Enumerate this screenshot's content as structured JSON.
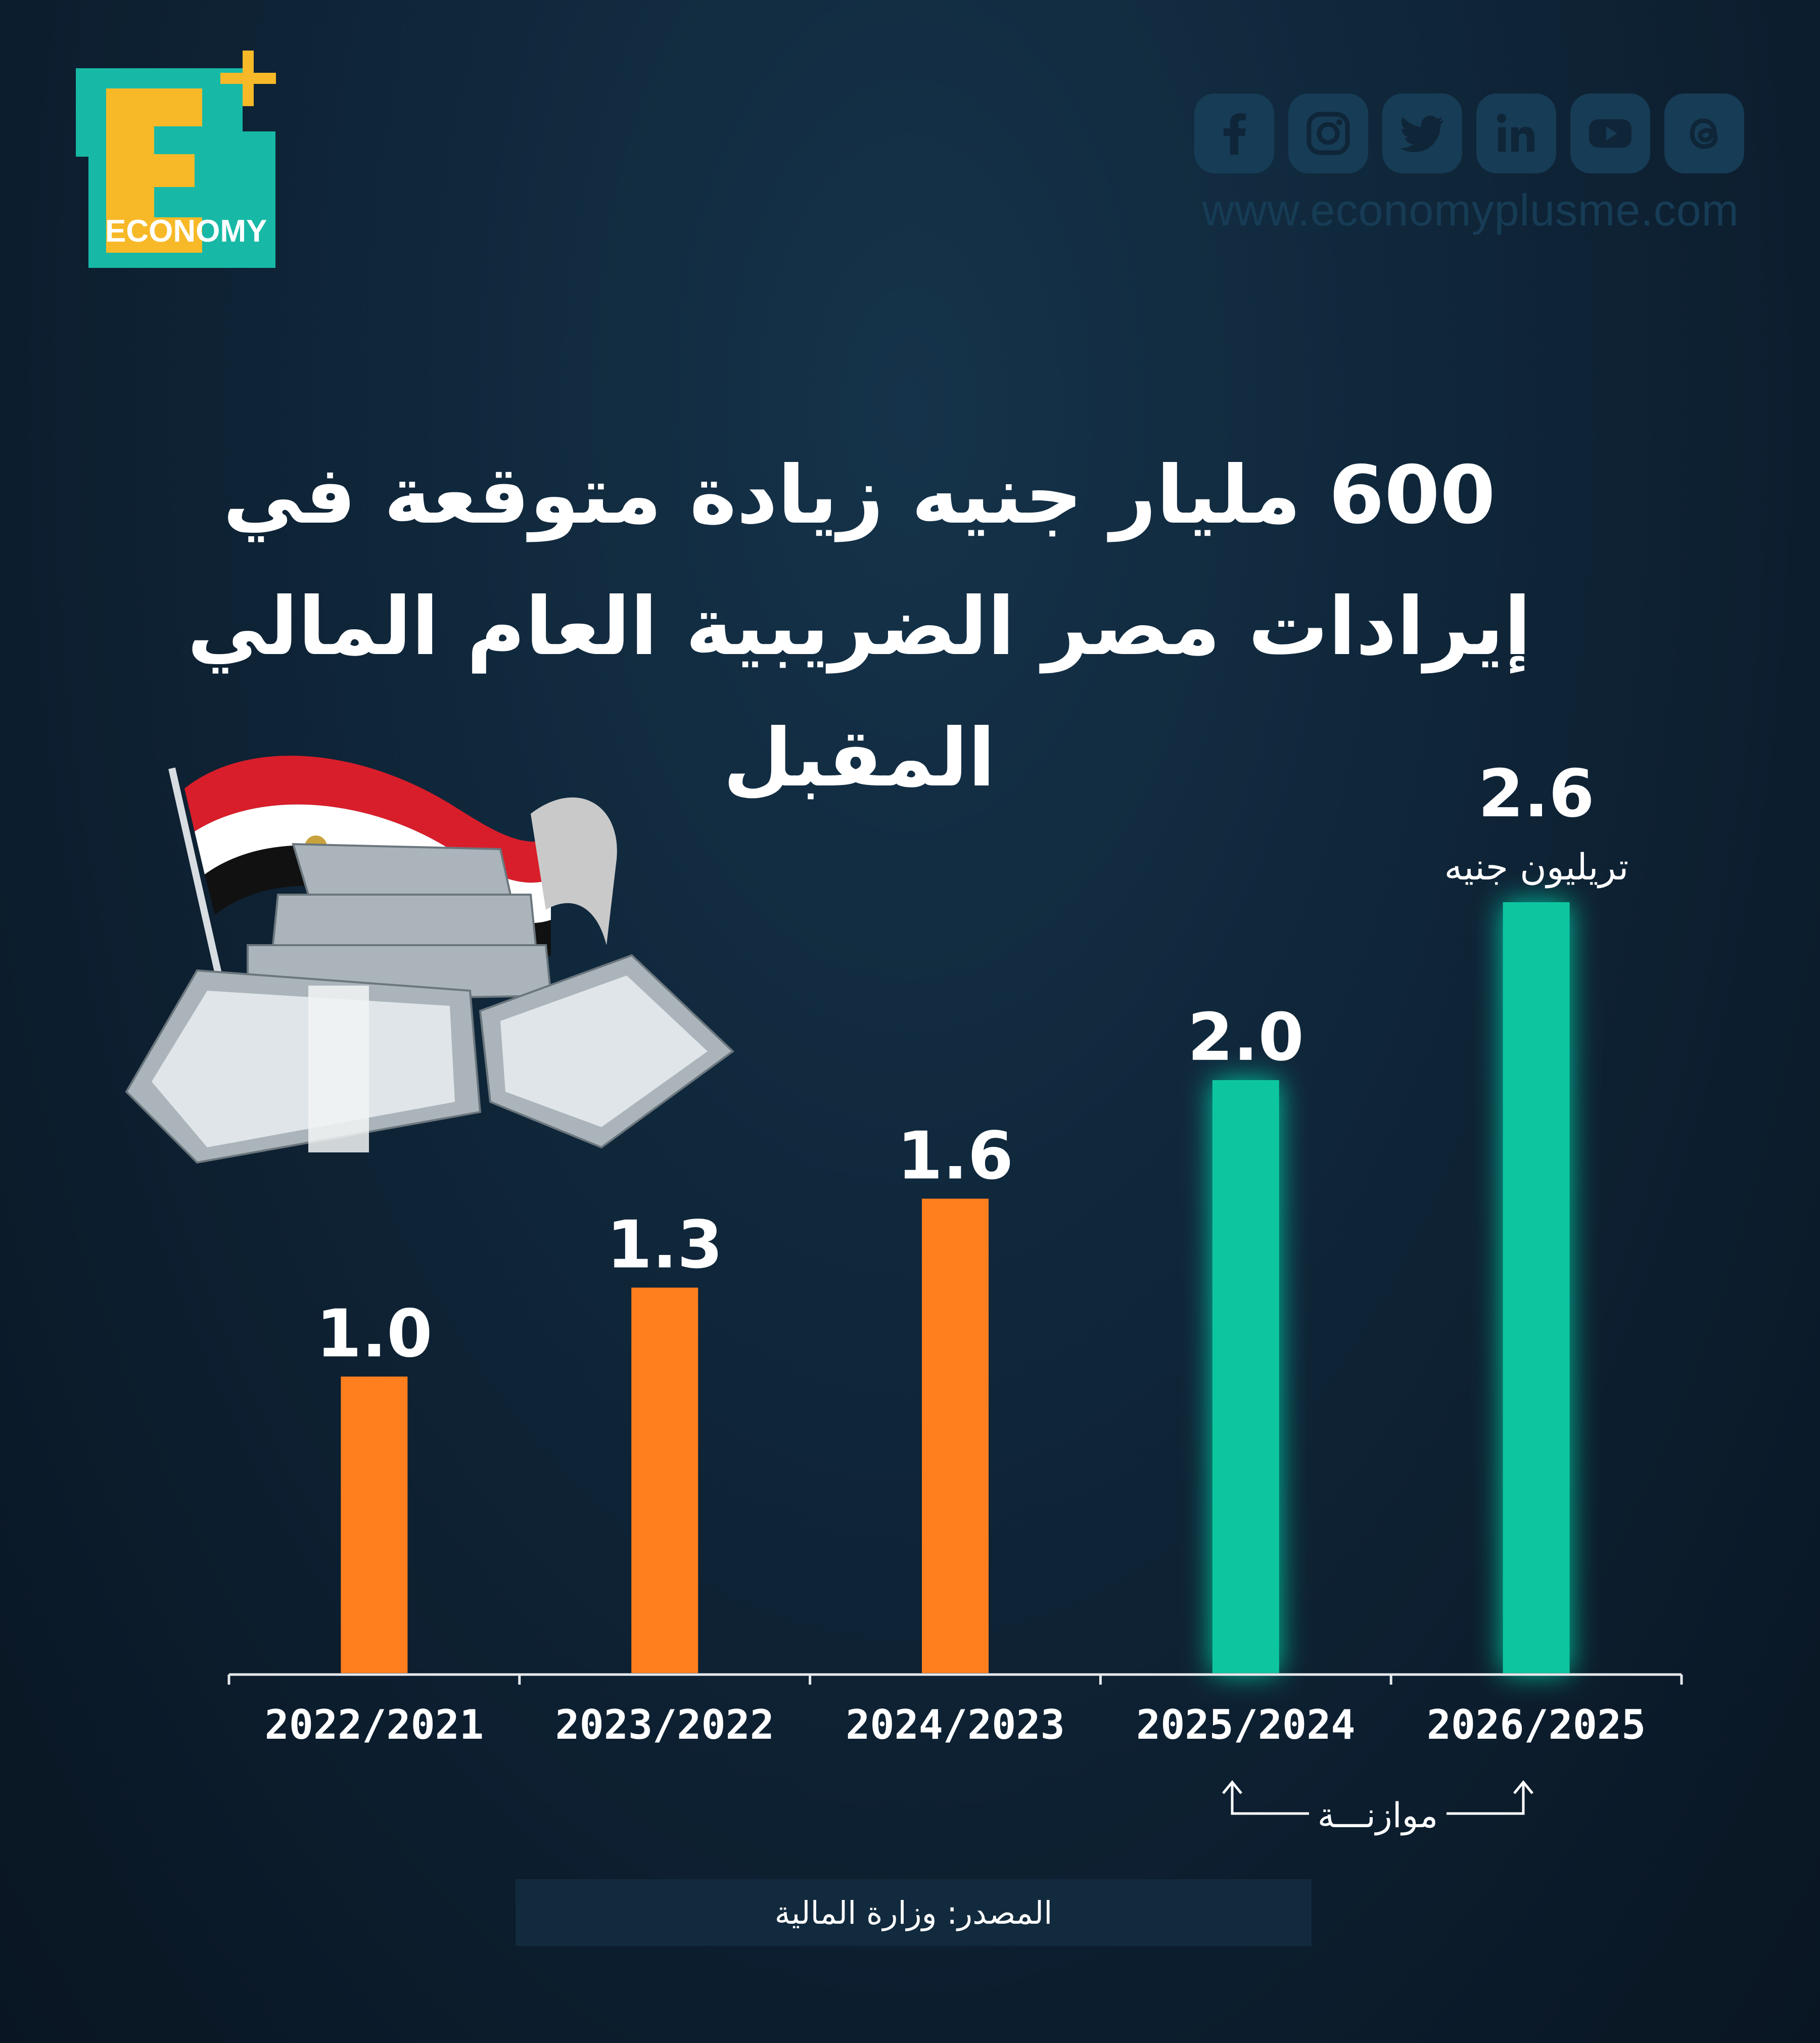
{
  "brand": {
    "logo_text": "ECONOMY",
    "site_url": "www.economyplusme.com",
    "social_icons": [
      "facebook-icon",
      "instagram-icon",
      "twitter-icon",
      "linkedin-icon",
      "youtube-icon",
      "threads-icon"
    ],
    "colors": {
      "teal": "#17b9a6",
      "yellow": "#f7b928",
      "orange": "#ff7f1f",
      "green": "#0fc6a0"
    }
  },
  "title": "600 مليار جنيه زيادة متوقعة في إيرادات مصر الضريبية العام المالي المقبل",
  "source": "المصدر: وزارة المالية",
  "chart_data": {
    "type": "bar",
    "categories": [
      "2022/2021",
      "2023/2022",
      "2024/2023",
      "2025/2024",
      "2026/2025"
    ],
    "values": [
      1.0,
      1.3,
      1.6,
      2.0,
      2.6
    ],
    "value_labels": [
      "1.0",
      "1.3",
      "1.6",
      "2.0",
      "2.6"
    ],
    "unit": "تريليون جنيه",
    "bar_colors": [
      "#ff7f1f",
      "#ff7f1f",
      "#ff7f1f",
      "#0fc6a0",
      "#0fc6a0"
    ],
    "annotation": "موازنـــة",
    "ylim": [
      0,
      2.6
    ],
    "grid": false
  }
}
